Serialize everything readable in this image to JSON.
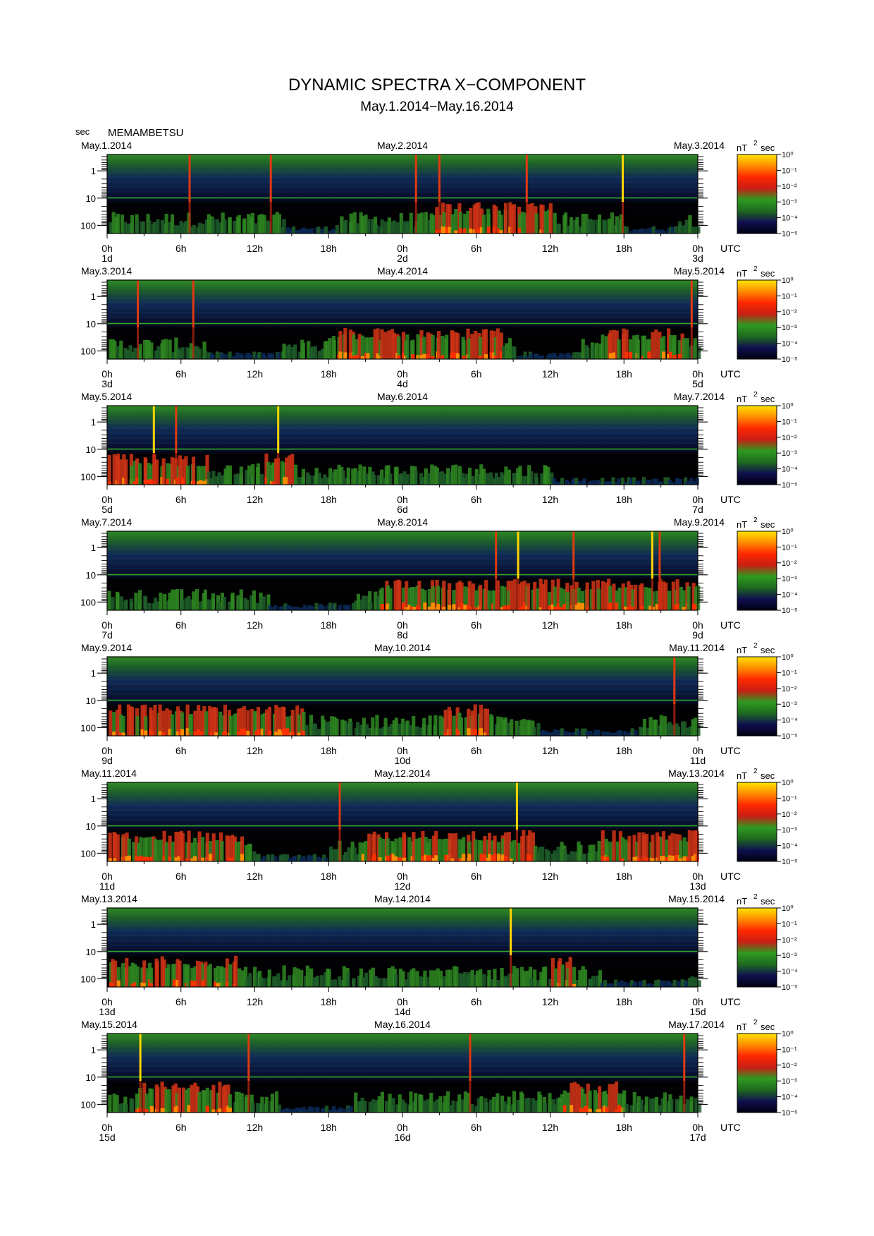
{
  "title": "DYNAMIC SPECTRA X−COMPONENT",
  "subtitle": "May.1.2014−May.16.2014",
  "y_unit": "sec",
  "station": "MEMAMBETSU",
  "colorbar_unit": "nT",
  "colorbar_unit_sup": "2",
  "colorbar_unit_suffix": "sec",
  "colors": {
    "background": "#ffffff",
    "axis": "#000000",
    "colormap": [
      "#000000",
      "#101050",
      "#0a3a6a",
      "#1e6a1e",
      "#2f9a20",
      "#c83c14",
      "#ff2800",
      "#ff8c00",
      "#ffe400"
    ]
  },
  "chart_data": [
    {
      "type": "heatmap",
      "date_left": "May.1.2014",
      "date_mid": "May.2.2014",
      "date_right": "May.3.2014",
      "x_ticks": [
        "0h",
        "6h",
        "12h",
        "18h",
        "0h",
        "6h",
        "12h",
        "18h",
        "0h"
      ],
      "day_ticks": [
        "1d",
        "2d",
        "3d"
      ],
      "x_unit": "UTC",
      "y_ticks": [
        "1",
        "10",
        "100"
      ],
      "y_scale": "log",
      "colorbar_ticks": [
        "10⁰",
        "10⁻¹",
        "10⁻²",
        "10⁻³",
        "10⁻⁴",
        "10⁻⁵"
      ],
      "xlim_hours": [
        0,
        48
      ],
      "spikes_hours": [
        6.7,
        13.3,
        25.1,
        27.0,
        34.1,
        41.9
      ],
      "disturbed_hours": [
        [
          26.5,
          36.0
        ]
      ],
      "quiet_hours": [
        [
          14.5,
          18.5
        ],
        [
          42.0,
          46.0
        ]
      ]
    },
    {
      "type": "heatmap",
      "date_left": "May.3.2014",
      "date_mid": "May.4.2014",
      "date_right": "May.5.2014",
      "x_ticks": [
        "0h",
        "6h",
        "12h",
        "18h",
        "0h",
        "6h",
        "12h",
        "18h",
        "0h"
      ],
      "day_ticks": [
        "3d",
        "4d",
        "5d"
      ],
      "x_unit": "UTC",
      "y_ticks": [
        "1",
        "10",
        "100"
      ],
      "y_scale": "log",
      "colorbar_ticks": [
        "10⁰",
        "10⁻¹",
        "10⁻²",
        "10⁻³",
        "10⁻⁴",
        "10⁻⁵"
      ],
      "xlim_hours": [
        0,
        48
      ],
      "spikes_hours": [
        2.5,
        7.0,
        47.5
      ],
      "disturbed_hours": [
        [
          18.0,
          32.0
        ],
        [
          40.0,
          47.0
        ]
      ],
      "quiet_hours": [
        [
          8.0,
          14.0
        ],
        [
          33.0,
          38.0
        ]
      ]
    },
    {
      "type": "heatmap",
      "date_left": "May.5.2014",
      "date_mid": "May.6.2014",
      "date_right": "May.7.2014",
      "x_ticks": [
        "0h",
        "6h",
        "12h",
        "18h",
        "0h",
        "6h",
        "12h",
        "18h",
        "0h"
      ],
      "day_ticks": [
        "5d",
        "6d",
        "7d"
      ],
      "x_unit": "UTC",
      "y_ticks": [
        "1",
        "10",
        "100"
      ],
      "y_scale": "log",
      "colorbar_ticks": [
        "10⁰",
        "10⁻¹",
        "10⁻²",
        "10⁻³",
        "10⁻⁴",
        "10⁻⁵"
      ],
      "xlim_hours": [
        0,
        48
      ],
      "spikes_hours": [
        3.8,
        5.6,
        13.9
      ],
      "disturbed_hours": [
        [
          0.0,
          8.0
        ],
        [
          12.5,
          15.0
        ]
      ],
      "quiet_hours": [
        [
          36.0,
          48.0
        ]
      ]
    },
    {
      "type": "heatmap",
      "date_left": "May.7.2014",
      "date_mid": "May.8.2014",
      "date_right": "May.9.2014",
      "x_ticks": [
        "0h",
        "6h",
        "12h",
        "18h",
        "0h",
        "6h",
        "12h",
        "18h",
        "0h"
      ],
      "day_ticks": [
        "7d",
        "8d",
        "9d"
      ],
      "x_unit": "UTC",
      "y_ticks": [
        "1",
        "10",
        "100"
      ],
      "y_scale": "log",
      "colorbar_ticks": [
        "10⁰",
        "10⁻¹",
        "10⁻²",
        "10⁻³",
        "10⁻⁴",
        "10⁻⁵"
      ],
      "xlim_hours": [
        0,
        48
      ],
      "spikes_hours": [
        31.6,
        33.4,
        37.9,
        44.3,
        44.9
      ],
      "disturbed_hours": [
        [
          22.0,
          48.0
        ]
      ],
      "quiet_hours": [
        [
          13.0,
          20.0
        ]
      ]
    },
    {
      "type": "heatmap",
      "date_left": "May.9.2014",
      "date_mid": "May.10.2014",
      "date_right": "May.11.2014",
      "x_ticks": [
        "0h",
        "6h",
        "12h",
        "18h",
        "0h",
        "6h",
        "12h",
        "18h",
        "0h"
      ],
      "day_ticks": [
        "9d",
        "10d",
        "11d"
      ],
      "x_unit": "UTC",
      "y_ticks": [
        "1",
        "10",
        "100"
      ],
      "y_scale": "log",
      "colorbar_ticks": [
        "10⁰",
        "10⁻¹",
        "10⁻²",
        "10⁻³",
        "10⁻⁴",
        "10⁻⁵"
      ],
      "xlim_hours": [
        0,
        48
      ],
      "spikes_hours": [
        46.1
      ],
      "disturbed_hours": [
        [
          0.0,
          16.0
        ],
        [
          27.0,
          31.0
        ]
      ],
      "quiet_hours": [
        [
          35.0,
          43.0
        ]
      ]
    },
    {
      "type": "heatmap",
      "date_left": "May.11.2014",
      "date_mid": "May.12.2014",
      "date_right": "May.13.2014",
      "x_ticks": [
        "0h",
        "6h",
        "12h",
        "18h",
        "0h",
        "6h",
        "12h",
        "18h",
        "0h"
      ],
      "day_ticks": [
        "11d",
        "12d",
        "13d"
      ],
      "x_unit": "UTC",
      "y_ticks": [
        "1",
        "10",
        "100"
      ],
      "y_scale": "log",
      "colorbar_ticks": [
        "10⁰",
        "10⁻¹",
        "10⁻²",
        "10⁻³",
        "10⁻⁴",
        "10⁻⁵"
      ],
      "xlim_hours": [
        0,
        48
      ],
      "spikes_hours": [
        18.9,
        33.3
      ],
      "disturbed_hours": [
        [
          0.0,
          11.0
        ],
        [
          20.5,
          34.5
        ],
        [
          40.0,
          48.0
        ]
      ],
      "quiet_hours": [
        [
          12.0,
          18.0
        ]
      ]
    },
    {
      "type": "heatmap",
      "date_left": "May.13.2014",
      "date_mid": "May.14.2014",
      "date_right": "May.15.2014",
      "x_ticks": [
        "0h",
        "6h",
        "12h",
        "18h",
        "0h",
        "6h",
        "12h",
        "18h",
        "0h"
      ],
      "day_ticks": [
        "13d",
        "14d",
        "15d"
      ],
      "x_unit": "UTC",
      "y_ticks": [
        "1",
        "10",
        "100"
      ],
      "y_scale": "log",
      "colorbar_ticks": [
        "10⁰",
        "10⁻¹",
        "10⁻²",
        "10⁻³",
        "10⁻⁴",
        "10⁻⁵"
      ],
      "xlim_hours": [
        0,
        48
      ],
      "spikes_hours": [
        32.8
      ],
      "disturbed_hours": [
        [
          0.0,
          10.5
        ],
        [
          36.0,
          38.0
        ]
      ],
      "quiet_hours": [
        [
          40.0,
          47.0
        ]
      ]
    },
    {
      "type": "heatmap",
      "date_left": "May.15.2014",
      "date_mid": "May.16.2014",
      "date_right": "May.17.2014",
      "x_ticks": [
        "0h",
        "6h",
        "12h",
        "18h",
        "0h",
        "6h",
        "12h",
        "18h",
        "0h"
      ],
      "day_ticks": [
        "15d",
        "16d",
        "17d"
      ],
      "x_unit": "UTC",
      "y_ticks": [
        "1",
        "10",
        "100"
      ],
      "y_scale": "log",
      "colorbar_ticks": [
        "10⁰",
        "10⁻¹",
        "10⁻²",
        "10⁻³",
        "10⁻⁴",
        "10⁻⁵"
      ],
      "xlim_hours": [
        0,
        48
      ],
      "spikes_hours": [
        2.7,
        11.5,
        29.5,
        46.9
      ],
      "disturbed_hours": [
        [
          2.0,
          10.0
        ],
        [
          37.0,
          42.0
        ]
      ],
      "quiet_hours": [
        [
          14.0,
          20.0
        ]
      ]
    }
  ]
}
